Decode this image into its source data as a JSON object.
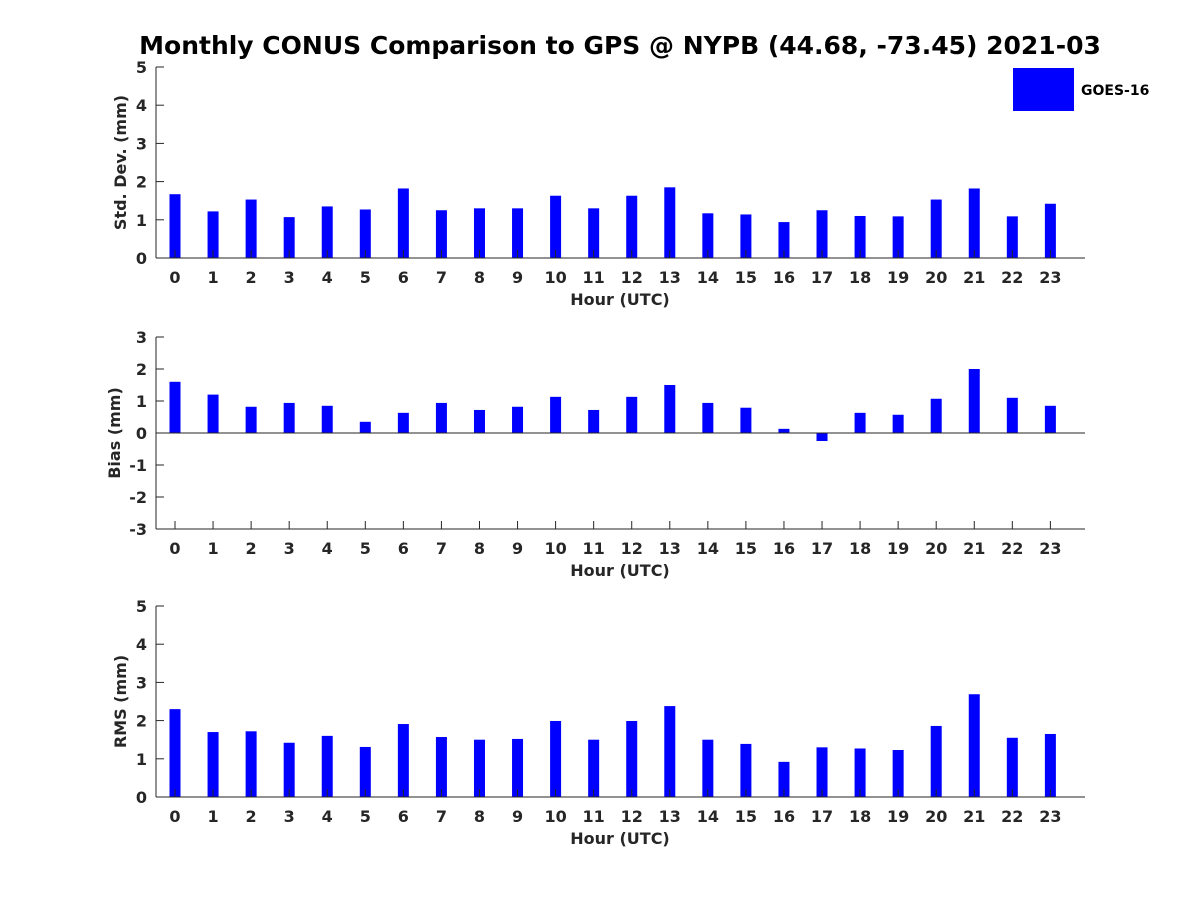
{
  "title": "Monthly CONUS Comparison to GPS @ NYPB (44.68, -73.45) 2021-03",
  "legend": {
    "label": "GOES-16",
    "color": "#0000ff",
    "position": "top-right"
  },
  "chart_data": [
    {
      "type": "bar",
      "categories": [
        "0",
        "1",
        "2",
        "3",
        "4",
        "5",
        "6",
        "7",
        "8",
        "9",
        "10",
        "11",
        "12",
        "13",
        "14",
        "15",
        "16",
        "17",
        "18",
        "19",
        "20",
        "21",
        "22",
        "23"
      ],
      "series": [
        {
          "name": "GOES-16",
          "values": [
            1.67,
            1.22,
            1.53,
            1.07,
            1.35,
            1.27,
            1.82,
            1.25,
            1.3,
            1.3,
            1.63,
            1.3,
            1.63,
            1.85,
            1.17,
            1.14,
            0.94,
            1.25,
            1.1,
            1.09,
            1.53,
            1.82,
            1.09,
            1.42
          ]
        }
      ],
      "xlabel": "Hour (UTC)",
      "ylabel": "Std. Dev. (mm)",
      "ylim": [
        0,
        5
      ],
      "yticks": [
        "0",
        "1",
        "2",
        "3",
        "4",
        "5"
      ],
      "grid": false
    },
    {
      "type": "bar",
      "categories": [
        "0",
        "1",
        "2",
        "3",
        "4",
        "5",
        "6",
        "7",
        "8",
        "9",
        "10",
        "11",
        "12",
        "13",
        "14",
        "15",
        "16",
        "17",
        "18",
        "19",
        "20",
        "21",
        "22",
        "23"
      ],
      "series": [
        {
          "name": "GOES-16",
          "values": [
            1.6,
            1.2,
            0.82,
            0.94,
            0.85,
            0.35,
            0.63,
            0.94,
            0.72,
            0.82,
            1.13,
            0.72,
            1.13,
            1.5,
            0.94,
            0.79,
            0.13,
            -0.25,
            0.63,
            0.57,
            1.07,
            2.0,
            1.1,
            0.85
          ]
        }
      ],
      "xlabel": "Hour (UTC)",
      "ylabel": "Bias (mm)",
      "ylim": [
        -3,
        3
      ],
      "yticks": [
        "-3",
        "-2",
        "-1",
        "0",
        "1",
        "2",
        "3"
      ],
      "grid": false
    },
    {
      "type": "bar",
      "categories": [
        "0",
        "1",
        "2",
        "3",
        "4",
        "5",
        "6",
        "7",
        "8",
        "9",
        "10",
        "11",
        "12",
        "13",
        "14",
        "15",
        "16",
        "17",
        "18",
        "19",
        "20",
        "21",
        "22",
        "23"
      ],
      "series": [
        {
          "name": "GOES-16",
          "values": [
            2.3,
            1.7,
            1.72,
            1.42,
            1.6,
            1.31,
            1.91,
            1.57,
            1.5,
            1.52,
            1.99,
            1.5,
            1.99,
            2.38,
            1.5,
            1.39,
            0.92,
            1.3,
            1.27,
            1.23,
            1.86,
            2.69,
            1.55,
            1.65
          ]
        }
      ],
      "xlabel": "Hour (UTC)",
      "ylabel": "RMS (mm)",
      "ylim": [
        0,
        5
      ],
      "yticks": [
        "0",
        "1",
        "2",
        "3",
        "4",
        "5"
      ],
      "grid": false
    }
  ]
}
